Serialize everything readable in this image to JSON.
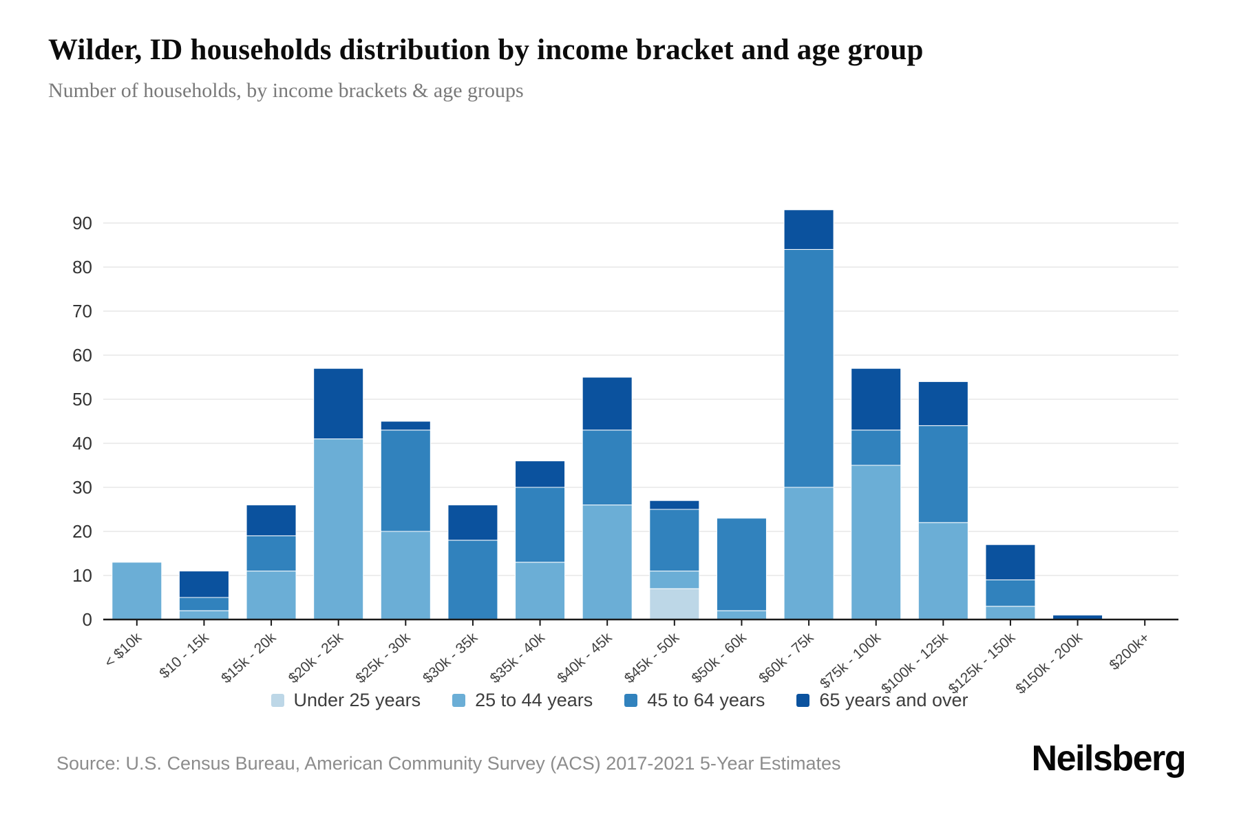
{
  "page": {
    "title": "Wilder, ID households distribution by income bracket and age group",
    "subtitle": "Number of households, by income brackets & age groups",
    "source": "Source: U.S. Census Bureau, American Community Survey (ACS) 2017-2021 5-Year Estimates",
    "brand": "Neilsberg"
  },
  "colors": {
    "under_25": "#bdd7e7",
    "age_25_44": "#6baed6",
    "age_45_64": "#3182bd",
    "age_65_plus": "#0b529e",
    "grid_line": "#ededed",
    "axis_line": "#1a1a1a",
    "y_tick_text": "#333333",
    "x_tick_text": "#3f3f3f"
  },
  "chart_data": {
    "type": "bar",
    "stacked": true,
    "title": "Wilder, ID households distribution by income bracket and age group",
    "xlabel": "",
    "ylabel": "Number of households",
    "ylim": [
      0,
      93
    ],
    "yticks": [
      0,
      10,
      20,
      30,
      40,
      50,
      60,
      70,
      80,
      90
    ],
    "grid": true,
    "legend_position": "bottom",
    "categories": [
      "< $10k",
      "$10 - 15k",
      "$15k - 20k",
      "$20k - 25k",
      "$25k - 30k",
      "$30k - 35k",
      "$35k - 40k",
      "$40k - 45k",
      "$45k - 50k",
      "$50k - 60k",
      "$60k - 75k",
      "$75k - 100k",
      "$100k - 125k",
      "$125k - 150k",
      "$150k - 200k",
      "$200k+"
    ],
    "series": [
      {
        "name": "Under 25 years",
        "color": "#bdd7e7",
        "values": [
          0,
          0,
          0,
          0,
          0,
          0,
          0,
          0,
          7,
          0,
          0,
          0,
          0,
          0,
          0,
          0
        ]
      },
      {
        "name": "25 to 44 years",
        "color": "#6baed6",
        "values": [
          13,
          2,
          11,
          41,
          20,
          0,
          13,
          26,
          4,
          2,
          30,
          35,
          22,
          3,
          0,
          0
        ]
      },
      {
        "name": "45 to 64 years",
        "color": "#3182bd",
        "values": [
          0,
          3,
          8,
          0,
          23,
          18,
          17,
          17,
          14,
          21,
          54,
          8,
          22,
          6,
          0,
          0
        ]
      },
      {
        "name": "65 years and over",
        "color": "#0b529e",
        "values": [
          0,
          6,
          7,
          16,
          2,
          8,
          6,
          12,
          2,
          0,
          9,
          14,
          10,
          8,
          1,
          0
        ]
      }
    ],
    "totals": [
      13,
      11,
      26,
      57,
      45,
      26,
      36,
      55,
      27,
      23,
      93,
      57,
      54,
      17,
      1,
      0
    ]
  }
}
